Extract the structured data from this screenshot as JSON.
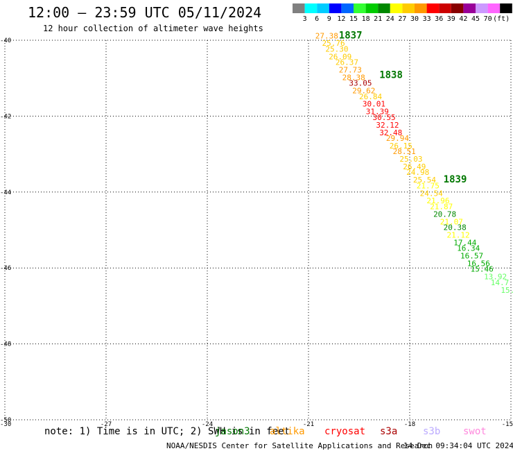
{
  "header": {
    "title": "12:00 – 23:59 UTC 05/11/2024",
    "subtitle": "12 hour collection of altimeter wave heights"
  },
  "scale": {
    "colors": [
      "#808080",
      "#00ffff",
      "#00ccff",
      "#0000ff",
      "#0066ff",
      "#33ff33",
      "#00cc00",
      "#008800",
      "#ffff00",
      "#ffcc00",
      "#ff9900",
      "#ff0000",
      "#cc0000",
      "#880000",
      "#990099",
      "#cc99ff",
      "#ff66ff",
      "#000000"
    ],
    "labels": [
      "3",
      "6",
      "9",
      "12",
      "15",
      "18",
      "21",
      "24",
      "27",
      "30",
      "33",
      "36",
      "39",
      "42",
      "45",
      "70"
    ],
    "unit": "(ft)"
  },
  "footer": {
    "note": "note: 1) Time is in UTC; 2) SWH is in feet",
    "satellites": [
      {
        "name": "jason3",
        "color": "#007700"
      },
      {
        "name": "altika",
        "color": "#ff9900"
      },
      {
        "name": "cryosat",
        "color": "#ff0000"
      },
      {
        "name": "s3a",
        "color": "#aa0000"
      },
      {
        "name": "s3b",
        "color": "#bbaaff"
      },
      {
        "name": "swot",
        "color": "#ff88dd"
      }
    ],
    "credit": "NOAA/NESDIS Center for Satellite Applications and Research",
    "timestamp": "14 Dec 09:34:04 UTC 2024"
  },
  "chart_data": {
    "type": "scatter",
    "xlim": [
      -30,
      -15
    ],
    "ylim": [
      -50,
      -40
    ],
    "x_ticks": [
      "-30",
      "-27",
      "-24",
      "-21",
      "-18",
      "-15"
    ],
    "y_ticks": [
      "-40",
      "-42",
      "-44",
      "-46",
      "-48",
      "-50"
    ],
    "grid": true,
    "time_labels": [
      {
        "text": "1837",
        "lon": -20.1,
        "lat": -39.95
      },
      {
        "text": "1838",
        "lon": -18.9,
        "lat": -41.0
      },
      {
        "text": "1839",
        "lon": -17.0,
        "lat": -43.75
      }
    ],
    "points": [
      {
        "lon": -20.8,
        "lat": -39.95,
        "value": "27.38",
        "color": "#ff9900"
      },
      {
        "lon": -20.6,
        "lat": -40.15,
        "value": "25.76",
        "color": "#ffcc00"
      },
      {
        "lon": -20.5,
        "lat": -40.3,
        "value": "25.30",
        "color": "#ffcc00"
      },
      {
        "lon": -20.4,
        "lat": -40.5,
        "value": "26.09",
        "color": "#ffcc00"
      },
      {
        "lon": -20.2,
        "lat": -40.65,
        "value": "26.37",
        "color": "#ffcc00"
      },
      {
        "lon": -20.1,
        "lat": -40.85,
        "value": "27.73",
        "color": "#ff9900"
      },
      {
        "lon": -20.0,
        "lat": -41.05,
        "value": "28.38",
        "color": "#ff9900"
      },
      {
        "lon": -19.8,
        "lat": -41.2,
        "value": "33.05",
        "color": "#aa0000"
      },
      {
        "lon": -19.7,
        "lat": -41.4,
        "value": "29.62",
        "color": "#ff9900"
      },
      {
        "lon": -19.5,
        "lat": -41.55,
        "value": "26.84",
        "color": "#ffcc00"
      },
      {
        "lon": -19.4,
        "lat": -41.75,
        "value": "30.01",
        "color": "#ff0000"
      },
      {
        "lon": -19.3,
        "lat": -41.95,
        "value": "31.39",
        "color": "#ff0000"
      },
      {
        "lon": -19.1,
        "lat": -42.1,
        "value": "30.55",
        "color": "#ff0000"
      },
      {
        "lon": -19.0,
        "lat": -42.3,
        "value": "32.12",
        "color": "#ff0000"
      },
      {
        "lon": -18.9,
        "lat": -42.5,
        "value": "32.48",
        "color": "#ff0000"
      },
      {
        "lon": -18.7,
        "lat": -42.65,
        "value": "29.94",
        "color": "#ff9900"
      },
      {
        "lon": -18.6,
        "lat": -42.85,
        "value": "26.15",
        "color": "#ffcc00"
      },
      {
        "lon": -18.5,
        "lat": -43.0,
        "value": "28.51",
        "color": "#ff9900"
      },
      {
        "lon": -18.3,
        "lat": -43.2,
        "value": "25.03",
        "color": "#ffcc00"
      },
      {
        "lon": -18.2,
        "lat": -43.4,
        "value": "26.49",
        "color": "#ffcc00"
      },
      {
        "lon": -18.1,
        "lat": -43.55,
        "value": "24.98",
        "color": "#ffcc00"
      },
      {
        "lon": -17.9,
        "lat": -43.75,
        "value": "25.54",
        "color": "#ffcc00"
      },
      {
        "lon": -17.8,
        "lat": -43.9,
        "value": "21.75",
        "color": "#ffff00"
      },
      {
        "lon": -17.7,
        "lat": -44.1,
        "value": "24.54",
        "color": "#ffcc00"
      },
      {
        "lon": -17.5,
        "lat": -44.3,
        "value": "21.96",
        "color": "#ffff00"
      },
      {
        "lon": -17.4,
        "lat": -44.45,
        "value": "21.87",
        "color": "#ffff00"
      },
      {
        "lon": -17.3,
        "lat": -44.65,
        "value": "20.78",
        "color": "#008800"
      },
      {
        "lon": -17.1,
        "lat": -44.85,
        "value": "21.07",
        "color": "#ffff00"
      },
      {
        "lon": -17.0,
        "lat": -45.0,
        "value": "20.38",
        "color": "#008800"
      },
      {
        "lon": -16.9,
        "lat": -45.2,
        "value": "21.12",
        "color": "#ffff00"
      },
      {
        "lon": -16.7,
        "lat": -45.4,
        "value": "17.44",
        "color": "#00aa00"
      },
      {
        "lon": -16.6,
        "lat": -45.55,
        "value": "16.34",
        "color": "#00aa00"
      },
      {
        "lon": -16.5,
        "lat": -45.75,
        "value": "16.57",
        "color": "#00aa00"
      },
      {
        "lon": -16.3,
        "lat": -45.95,
        "value": "16.56",
        "color": "#00aa00"
      },
      {
        "lon": -16.2,
        "lat": -46.1,
        "value": "15.46",
        "color": "#00aa00"
      },
      {
        "lon": -15.8,
        "lat": -46.3,
        "value": "13.92",
        "color": "#66ff66"
      },
      {
        "lon": -15.6,
        "lat": -46.45,
        "value": "14.7",
        "color": "#66ff66"
      },
      {
        "lon": -15.3,
        "lat": -46.65,
        "value": "15.",
        "color": "#66ff66"
      }
    ]
  }
}
